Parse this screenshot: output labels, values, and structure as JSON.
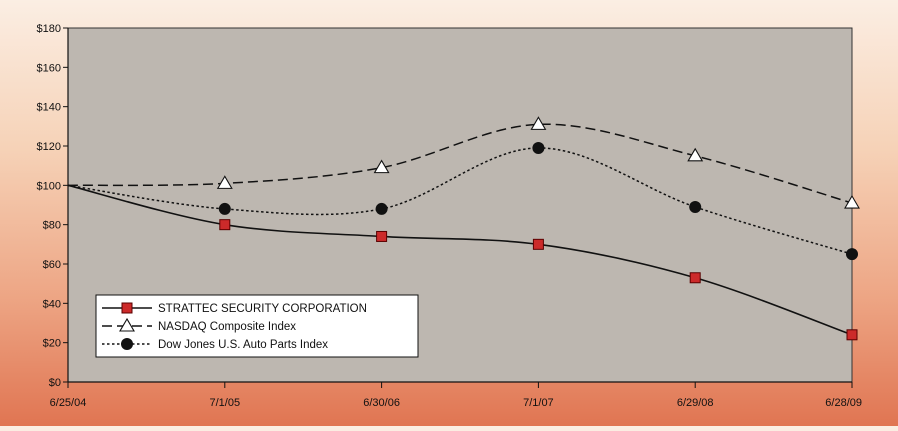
{
  "chart_data": {
    "type": "line",
    "categories": [
      "6/25/04",
      "7/1/05",
      "6/30/06",
      "7/1/07",
      "6/29/08",
      "6/28/09"
    ],
    "ylim": [
      0,
      180
    ],
    "yticks": [
      0,
      20,
      40,
      60,
      80,
      100,
      120,
      140,
      160,
      180
    ],
    "y_tick_labels": [
      "$0",
      "$20",
      "$40",
      "$60",
      "$80",
      "$100",
      "$120",
      "$140",
      "$160",
      "$180"
    ],
    "grid": false,
    "legend_position": "bottom-left",
    "series": [
      {
        "name": "STRATTEC SECURITY CORPORATION",
        "values": [
          100,
          80,
          74,
          70,
          53,
          24
        ],
        "line_style": "solid",
        "marker": "square",
        "marker_color": "#cc2a2a"
      },
      {
        "name": "NASDAQ Composite Index",
        "values": [
          100,
          101,
          109,
          131,
          115,
          91
        ],
        "line_style": "dashed",
        "marker": "triangle-open",
        "marker_color": "#ffffff"
      },
      {
        "name": "Dow Jones U.S. Auto Parts Index",
        "values": [
          100,
          88,
          88,
          119,
          89,
          65
        ],
        "line_style": "dotted",
        "marker": "circle",
        "marker_color": "#111111"
      }
    ],
    "colors": {
      "plot_background": "#bdb7b0",
      "line": "#111111"
    }
  }
}
